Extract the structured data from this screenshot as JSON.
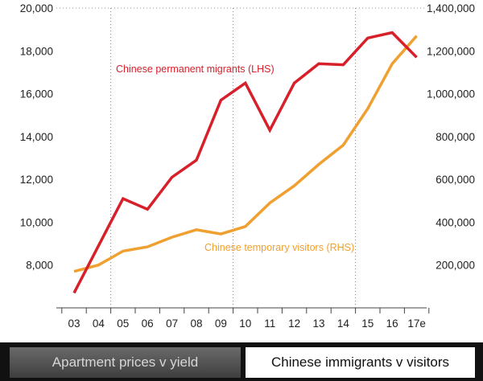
{
  "chart_data": {
    "type": "line",
    "categories": [
      "03",
      "04",
      "05",
      "06",
      "07",
      "08",
      "09",
      "10",
      "11",
      "12",
      "13",
      "14",
      "15",
      "16",
      "17e"
    ],
    "left_axis": {
      "ticks": [
        "8,000",
        "10,000",
        "12,000",
        "14,000",
        "16,000",
        "18,000",
        "20,000"
      ],
      "ylim": [
        6000,
        20000
      ]
    },
    "right_axis": {
      "ticks": [
        "200,000",
        "400,000",
        "600,000",
        "800,000",
        "1,000,000",
        "1,200,000",
        "1,400,000"
      ],
      "ylim": [
        0,
        1400000
      ]
    },
    "series": [
      {
        "name": "Chinese permanent migrants (LHS)",
        "axis": "left",
        "color": "#d7202a",
        "values": [
          6700,
          8900,
          11100,
          10600,
          12100,
          12900,
          15700,
          16500,
          14300,
          16500,
          17400,
          17350,
          18600,
          18850,
          17700
        ]
      },
      {
        "name": "Chinese temporary visitors (RHS)",
        "axis": "right",
        "color": "#f0a030",
        "values": [
          170000,
          200000,
          265000,
          285000,
          330000,
          365000,
          345000,
          380000,
          490000,
          570000,
          670000,
          760000,
          930000,
          1140000,
          1270000
        ]
      }
    ],
    "vertical_dividers_after": [
      "04",
      "09",
      "14"
    ],
    "grid": false
  },
  "tabs": [
    {
      "label": "Apartment prices v yield",
      "active": false
    },
    {
      "label": "Chinese immigrants v visitors",
      "active": true
    }
  ]
}
